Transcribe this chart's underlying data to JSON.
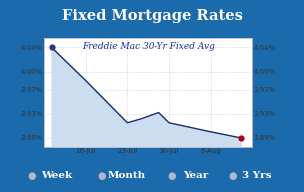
{
  "title": "Fixed Mortgage Rates",
  "subtitle": "Freddie Mac 30-Yr Fixed Avg",
  "bg_color": "#1b6aab",
  "chart_bg": "#ffffff",
  "line_color": "#1a2e6e",
  "fill_color": "#ccddf0",
  "marker_start_color": "#2a3a7e",
  "marker_end_color": "#b0001a",
  "x_labels": [
    "16-Jul",
    "23-Jul",
    "30-Jul",
    "6-Aug"
  ],
  "y_values": [
    4.04,
    3.985,
    3.915,
    3.922,
    3.932,
    3.915,
    3.9,
    3.89
  ],
  "x_data": [
    0.18,
    1.0,
    2.0,
    2.35,
    2.75,
    3.0,
    4.0,
    4.72
  ],
  "ylim": [
    3.875,
    4.055
  ],
  "yticks": [
    3.89,
    3.93,
    3.97,
    4.0,
    4.04
  ],
  "ytick_labels": [
    "3.89%",
    "3.93%",
    "3.97%",
    "4.00%",
    "4.04%"
  ],
  "footer_items": [
    "Week",
    "Month",
    "Year",
    "3 Yrs"
  ],
  "footer_color": "#ffffff",
  "title_fontsize": 10.5,
  "subtitle_fontsize": 6.5,
  "tick_fontsize": 5.0,
  "footer_fontsize": 7.5,
  "bullet_fontsize": 7.0
}
